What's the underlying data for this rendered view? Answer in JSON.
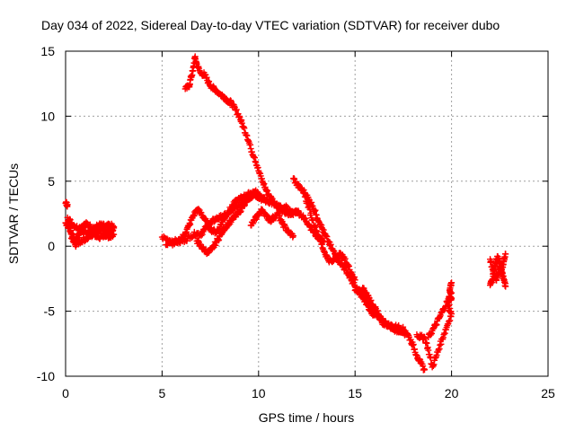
{
  "chart_data": {
    "type": "scatter",
    "title": "Day 034 of 2022, Sidereal Day-to-day VTEC variation (SDTVAR) for receiver dubo",
    "xlabel": "GPS time / hours",
    "ylabel": "SDTVAR / TECUs",
    "xlim": [
      0,
      25
    ],
    "ylim": [
      -10,
      15
    ],
    "xticks": [
      0,
      5,
      10,
      15,
      20,
      25
    ],
    "yticks": [
      -10,
      -5,
      0,
      5,
      10,
      15
    ],
    "grid": true,
    "marker": "+",
    "color": "#ff0000",
    "series": [
      {
        "name": "SDTVAR",
        "segments": [
          [
            [
              0.0,
              1.8
            ],
            [
              0.1,
              1.6
            ],
            [
              0.2,
              1.4
            ],
            [
              0.3,
              1.0
            ],
            [
              0.4,
              0.7
            ],
            [
              0.5,
              0.4
            ],
            [
              0.6,
              0.6
            ],
            [
              0.7,
              1.0
            ],
            [
              0.8,
              1.3
            ],
            [
              0.9,
              1.2
            ],
            [
              1.0,
              1.1
            ],
            [
              1.2,
              1.0
            ],
            [
              1.4,
              1.2
            ],
            [
              1.6,
              1.0
            ],
            [
              1.8,
              1.3
            ],
            [
              2.0,
              1.2
            ],
            [
              2.2,
              1.1
            ],
            [
              2.4,
              1.3
            ],
            [
              2.5,
              1.4
            ]
          ],
          [
            [
              0.0,
              3.3
            ],
            [
              0.1,
              3.2
            ]
          ],
          [
            [
              0.1,
              2.2
            ],
            [
              0.3,
              1.8
            ],
            [
              0.5,
              1.5
            ],
            [
              0.7,
              1.4
            ],
            [
              0.9,
              1.6
            ],
            [
              1.1,
              1.7
            ],
            [
              1.3,
              1.5
            ],
            [
              1.5,
              1.4
            ],
            [
              1.7,
              1.6
            ],
            [
              1.9,
              1.6
            ],
            [
              2.1,
              1.5
            ],
            [
              2.3,
              1.6
            ],
            [
              2.5,
              1.5
            ]
          ],
          [
            [
              0.3,
              0.6
            ],
            [
              0.5,
              0.1
            ],
            [
              0.7,
              0.3
            ],
            [
              0.9,
              0.5
            ],
            [
              1.1,
              0.6
            ],
            [
              1.3,
              0.8
            ],
            [
              1.5,
              0.9
            ],
            [
              1.7,
              0.7
            ],
            [
              1.9,
              0.8
            ],
            [
              2.1,
              0.9
            ],
            [
              2.3,
              0.7
            ],
            [
              2.5,
              0.9
            ]
          ],
          [
            [
              6.2,
              12.1
            ],
            [
              6.4,
              12.3
            ],
            [
              6.5,
              13.0
            ],
            [
              6.6,
              13.5
            ],
            [
              6.7,
              14.5
            ],
            [
              6.8,
              14.0
            ],
            [
              7.0,
              13.3
            ],
            [
              7.2,
              13.2
            ],
            [
              7.4,
              12.6
            ],
            [
              7.6,
              12.2
            ],
            [
              7.8,
              12.0
            ],
            [
              8.0,
              11.7
            ],
            [
              8.2,
              11.5
            ],
            [
              8.4,
              11.2
            ],
            [
              8.6,
              11.0
            ],
            [
              8.8,
              10.5
            ],
            [
              9.0,
              10.0
            ],
            [
              9.2,
              9.2
            ],
            [
              9.4,
              8.5
            ],
            [
              9.6,
              7.5
            ],
            [
              9.8,
              6.8
            ],
            [
              10.0,
              5.8
            ],
            [
              10.2,
              5.0
            ],
            [
              10.4,
              4.3
            ],
            [
              10.6,
              3.8
            ],
            [
              10.8,
              3.4
            ],
            [
              11.0,
              3.0
            ],
            [
              11.2,
              2.8
            ],
            [
              11.4,
              3.0
            ],
            [
              11.6,
              2.7
            ],
            [
              11.8,
              2.4
            ]
          ],
          [
            [
              5.0,
              0.7
            ],
            [
              5.3,
              0.5
            ],
            [
              5.6,
              0.4
            ],
            [
              5.9,
              0.3
            ],
            [
              6.2,
              0.5
            ],
            [
              6.5,
              0.8
            ],
            [
              6.8,
              1.0
            ],
            [
              7.0,
              0.9
            ],
            [
              7.2,
              1.3
            ],
            [
              7.4,
              1.6
            ],
            [
              7.6,
              1.9
            ],
            [
              7.8,
              2.1
            ],
            [
              8.0,
              2.2
            ],
            [
              8.3,
              2.4
            ],
            [
              8.6,
              2.7
            ],
            [
              8.9,
              3.0
            ],
            [
              9.2,
              3.3
            ],
            [
              9.5,
              3.7
            ],
            [
              9.8,
              4.0
            ],
            [
              10.0,
              3.8
            ],
            [
              10.2,
              3.6
            ],
            [
              10.4,
              3.5
            ],
            [
              10.6,
              3.4
            ],
            [
              10.8,
              3.2
            ],
            [
              11.0,
              3.1
            ],
            [
              11.2,
              2.9
            ],
            [
              11.4,
              2.6
            ],
            [
              11.6,
              2.5
            ],
            [
              11.8,
              2.6
            ],
            [
              12.0,
              2.7
            ],
            [
              12.2,
              2.4
            ],
            [
              12.4,
              2.1
            ],
            [
              12.6,
              1.7
            ],
            [
              12.8,
              1.2
            ],
            [
              13.0,
              0.8
            ],
            [
              13.2,
              0.6
            ],
            [
              13.4,
              0.4
            ]
          ],
          [
            [
              5.2,
              0.1
            ],
            [
              5.5,
              0.2
            ],
            [
              5.8,
              0.3
            ],
            [
              6.0,
              0.6
            ],
            [
              6.2,
              1.0
            ],
            [
              6.4,
              1.6
            ],
            [
              6.6,
              2.3
            ],
            [
              6.8,
              2.8
            ],
            [
              7.0,
              2.6
            ],
            [
              7.2,
              2.1
            ],
            [
              7.4,
              1.6
            ],
            [
              7.6,
              1.2
            ],
            [
              7.8,
              1.1
            ],
            [
              8.0,
              1.5
            ],
            [
              8.2,
              2.1
            ],
            [
              8.4,
              2.6
            ],
            [
              8.6,
              3.0
            ],
            [
              8.8,
              3.4
            ],
            [
              9.0,
              3.6
            ],
            [
              9.2,
              3.8
            ],
            [
              9.4,
              3.9
            ],
            [
              9.6,
              4.1
            ],
            [
              9.8,
              4.2
            ],
            [
              10.0,
              4.0
            ],
            [
              10.2,
              3.7
            ],
            [
              10.4,
              3.5
            ]
          ],
          [
            [
              6.8,
              0.4
            ],
            [
              7.0,
              0.0
            ],
            [
              7.2,
              -0.3
            ],
            [
              7.4,
              -0.5
            ],
            [
              7.6,
              -0.2
            ],
            [
              7.8,
              0.3
            ],
            [
              8.0,
              0.8
            ],
            [
              8.2,
              1.3
            ],
            [
              8.4,
              1.7
            ],
            [
              8.6,
              2.0
            ],
            [
              8.8,
              2.3
            ],
            [
              9.0,
              2.6
            ],
            [
              9.2,
              3.2
            ],
            [
              9.4,
              3.4
            ]
          ],
          [
            [
              9.6,
              1.6
            ],
            [
              9.8,
              2.0
            ],
            [
              10.0,
              2.5
            ],
            [
              10.2,
              2.8
            ],
            [
              10.4,
              2.3
            ],
            [
              10.6,
              2.0
            ],
            [
              10.8,
              2.2
            ],
            [
              11.0,
              2.5
            ],
            [
              11.2,
              1.8
            ],
            [
              11.4,
              1.4
            ],
            [
              11.6,
              1.0
            ],
            [
              11.8,
              0.8
            ]
          ],
          [
            [
              11.8,
              5.2
            ],
            [
              12.0,
              4.7
            ],
            [
              12.2,
              4.4
            ],
            [
              12.4,
              4.1
            ],
            [
              12.6,
              3.6
            ],
            [
              12.8,
              3.1
            ],
            [
              13.0,
              2.4
            ],
            [
              13.2,
              1.7
            ],
            [
              13.4,
              1.0
            ],
            [
              13.6,
              0.4
            ],
            [
              13.8,
              -0.2
            ],
            [
              14.0,
              -0.7
            ],
            [
              14.2,
              -1.2
            ],
            [
              14.4,
              -1.6
            ],
            [
              14.6,
              -2.0
            ],
            [
              14.8,
              -2.6
            ],
            [
              15.0,
              -3.1
            ],
            [
              15.2,
              -3.6
            ],
            [
              15.4,
              -4.0
            ],
            [
              15.6,
              -4.3
            ],
            [
              15.8,
              -4.6
            ],
            [
              16.0,
              -5.0
            ],
            [
              16.2,
              -5.5
            ],
            [
              16.4,
              -5.9
            ],
            [
              16.6,
              -6.0
            ],
            [
              16.8,
              -6.1
            ],
            [
              17.0,
              -6.2
            ],
            [
              17.2,
              -6.2
            ],
            [
              17.4,
              -6.3
            ],
            [
              17.6,
              -6.5
            ],
            [
              17.8,
              -7.0
            ],
            [
              18.0,
              -7.6
            ],
            [
              18.2,
              -8.4
            ],
            [
              18.4,
              -9.0
            ],
            [
              18.6,
              -9.5
            ]
          ],
          [
            [
              12.4,
              3.8
            ],
            [
              12.6,
              3.0
            ],
            [
              12.8,
              2.0
            ],
            [
              13.0,
              1.2
            ],
            [
              13.2,
              0.4
            ],
            [
              13.4,
              -0.4
            ],
            [
              13.6,
              -1.0
            ],
            [
              13.8,
              -1.2
            ],
            [
              14.0,
              -0.9
            ],
            [
              14.2,
              -0.6
            ],
            [
              14.4,
              -0.9
            ],
            [
              14.6,
              -1.4
            ],
            [
              14.8,
              -2.0
            ],
            [
              15.0,
              -2.6
            ]
          ],
          [
            [
              15.4,
              -3.2
            ],
            [
              15.6,
              -3.6
            ],
            [
              15.8,
              -4.2
            ],
            [
              16.0,
              -4.7
            ],
            [
              16.2,
              -5.2
            ],
            [
              16.4,
              -5.6
            ],
            [
              16.6,
              -5.9
            ],
            [
              16.8,
              -6.2
            ],
            [
              17.0,
              -6.4
            ],
            [
              17.2,
              -6.5
            ],
            [
              17.4,
              -6.6
            ],
            [
              17.6,
              -6.8
            ]
          ],
          [
            [
              15.0,
              -3.4
            ],
            [
              15.2,
              -3.3
            ],
            [
              15.4,
              -3.5
            ],
            [
              15.6,
              -4.5
            ],
            [
              15.8,
              -5.0
            ],
            [
              16.0,
              -5.3
            ]
          ],
          [
            [
              18.2,
              -6.8
            ],
            [
              18.4,
              -7.0
            ],
            [
              18.6,
              -7.0
            ],
            [
              18.8,
              -8.0
            ],
            [
              19.0,
              -9.3
            ],
            [
              19.2,
              -8.5
            ],
            [
              19.4,
              -7.6
            ],
            [
              19.6,
              -6.8
            ],
            [
              19.8,
              -6.0
            ],
            [
              20.0,
              -5.2
            ],
            [
              19.8,
              -4.6
            ],
            [
              20.0,
              -4.0
            ],
            [
              19.9,
              -3.4
            ],
            [
              20.0,
              -2.8
            ]
          ],
          [
            [
              18.8,
              -7.0
            ],
            [
              19.0,
              -6.5
            ],
            [
              19.2,
              -6.0
            ],
            [
              19.4,
              -5.4
            ],
            [
              19.6,
              -4.8
            ],
            [
              19.8,
              -4.2
            ],
            [
              20.0,
              -3.6
            ]
          ],
          [
            [
              22.0,
              -1.0
            ],
            [
              22.1,
              -1.6
            ],
            [
              22.2,
              -2.1
            ],
            [
              22.3,
              -2.6
            ],
            [
              22.4,
              -2.2
            ],
            [
              22.5,
              -1.6
            ],
            [
              22.6,
              -1.8
            ],
            [
              22.7,
              -1.2
            ],
            [
              22.8,
              -0.6
            ]
          ],
          [
            [
              22.0,
              -3.0
            ],
            [
              22.1,
              -2.6
            ],
            [
              22.2,
              -1.8
            ],
            [
              22.3,
              -1.2
            ],
            [
              22.4,
              -0.8
            ],
            [
              22.5,
              -1.3
            ],
            [
              22.6,
              -2.0
            ],
            [
              22.7,
              -2.5
            ],
            [
              22.8,
              -3.1
            ]
          ]
        ]
      }
    ]
  }
}
